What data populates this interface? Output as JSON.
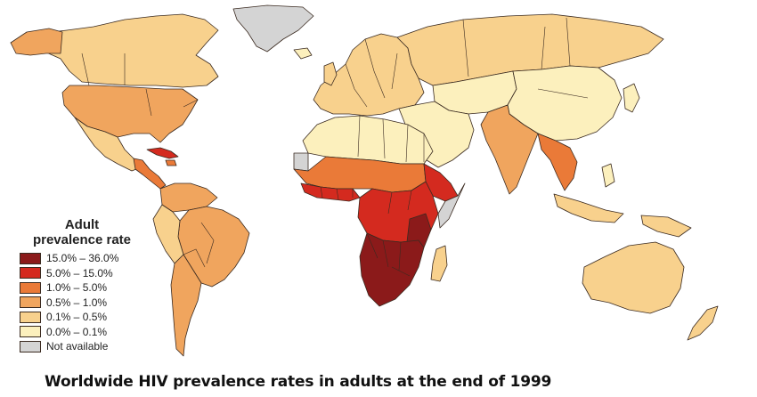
{
  "legend": {
    "title_line1": "Adult",
    "title_line2": "prevalence rate",
    "items": [
      {
        "label": "15.0% – 36.0%",
        "color": "#8b1a1a"
      },
      {
        "label": "5.0% – 15.0%",
        "color": "#d42a1f"
      },
      {
        "label": "1.0% – 5.0%",
        "color": "#ea7a38"
      },
      {
        "label": "0.5% – 1.0%",
        "color": "#f0a55e"
      },
      {
        "label": "0.1% – 0.5%",
        "color": "#f8d18d"
      },
      {
        "label": "0.0% – 0.1%",
        "color": "#fcf0bd"
      },
      {
        "label": "Not available",
        "color": "#d4d4d4"
      }
    ]
  },
  "caption": "Worldwide HIV prevalence rates in adults at the end of 1999"
}
